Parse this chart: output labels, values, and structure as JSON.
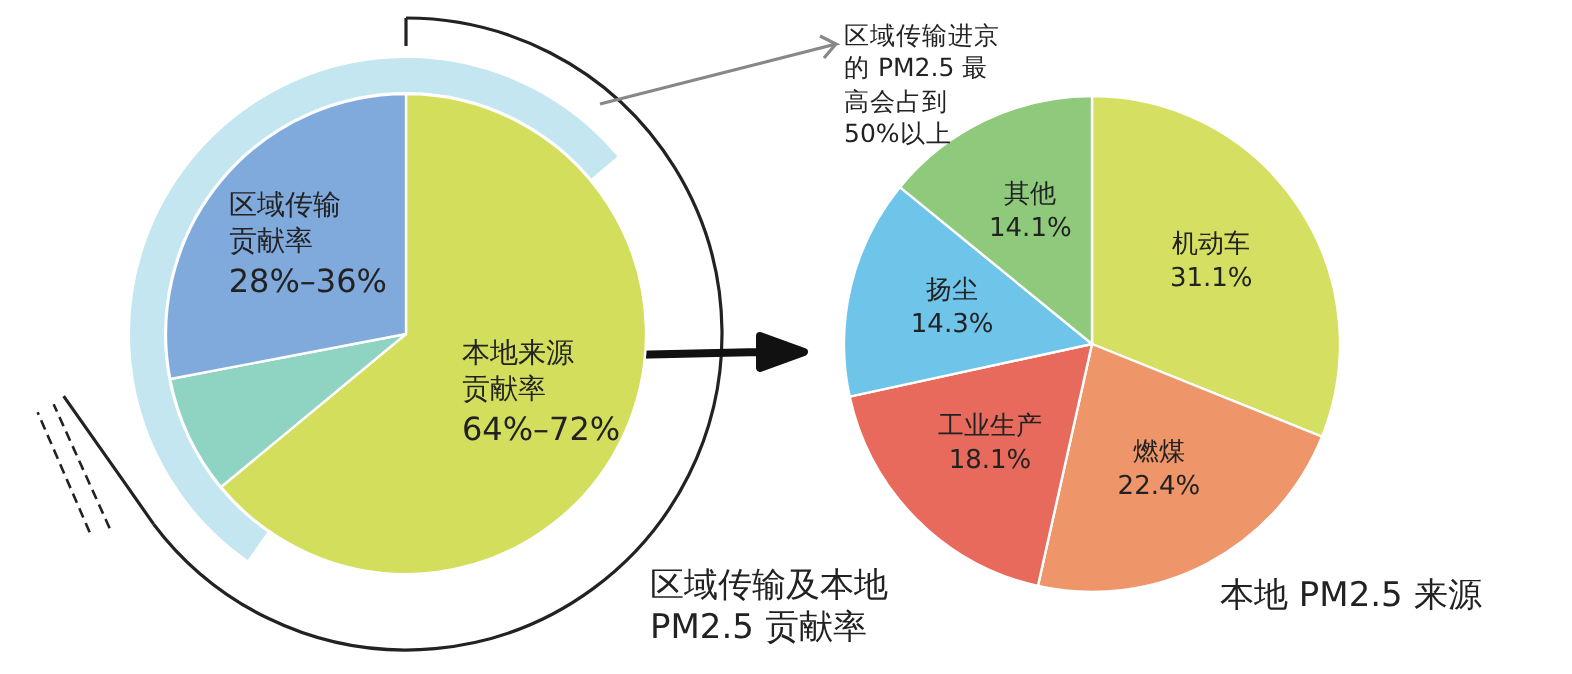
{
  "chart_data": [
    {
      "type": "pie",
      "title": "区域传输及本地 PM2.5 贡献率",
      "categories": [
        "本地来源贡献率",
        null,
        "区域传输贡献率"
      ],
      "values": [
        64,
        8,
        28
      ],
      "colors": [
        "#d3de5c",
        "#8fd3c2",
        "#80a9dc"
      ],
      "value_labels": [
        "64%–72%",
        null,
        "28%–36%"
      ],
      "annotations": [
        "区域传输进京的 PM2.5 最高会占到50%以上"
      ]
    },
    {
      "type": "pie",
      "title": "本地 PM2.5 来源",
      "categories": [
        "机动车",
        "燃煤",
        "工业生产",
        "扬尘",
        "其他"
      ],
      "values": [
        31.1,
        22.4,
        18.1,
        14.3,
        14.1
      ],
      "colors": [
        "#d5df62",
        "#ee956a",
        "#e86a5d",
        "#6fc4ea",
        "#8ec97c"
      ],
      "value_labels": [
        "31.1%",
        "22.4%",
        "18.1%",
        "14.3%",
        "14.1%"
      ]
    }
  ]
}
